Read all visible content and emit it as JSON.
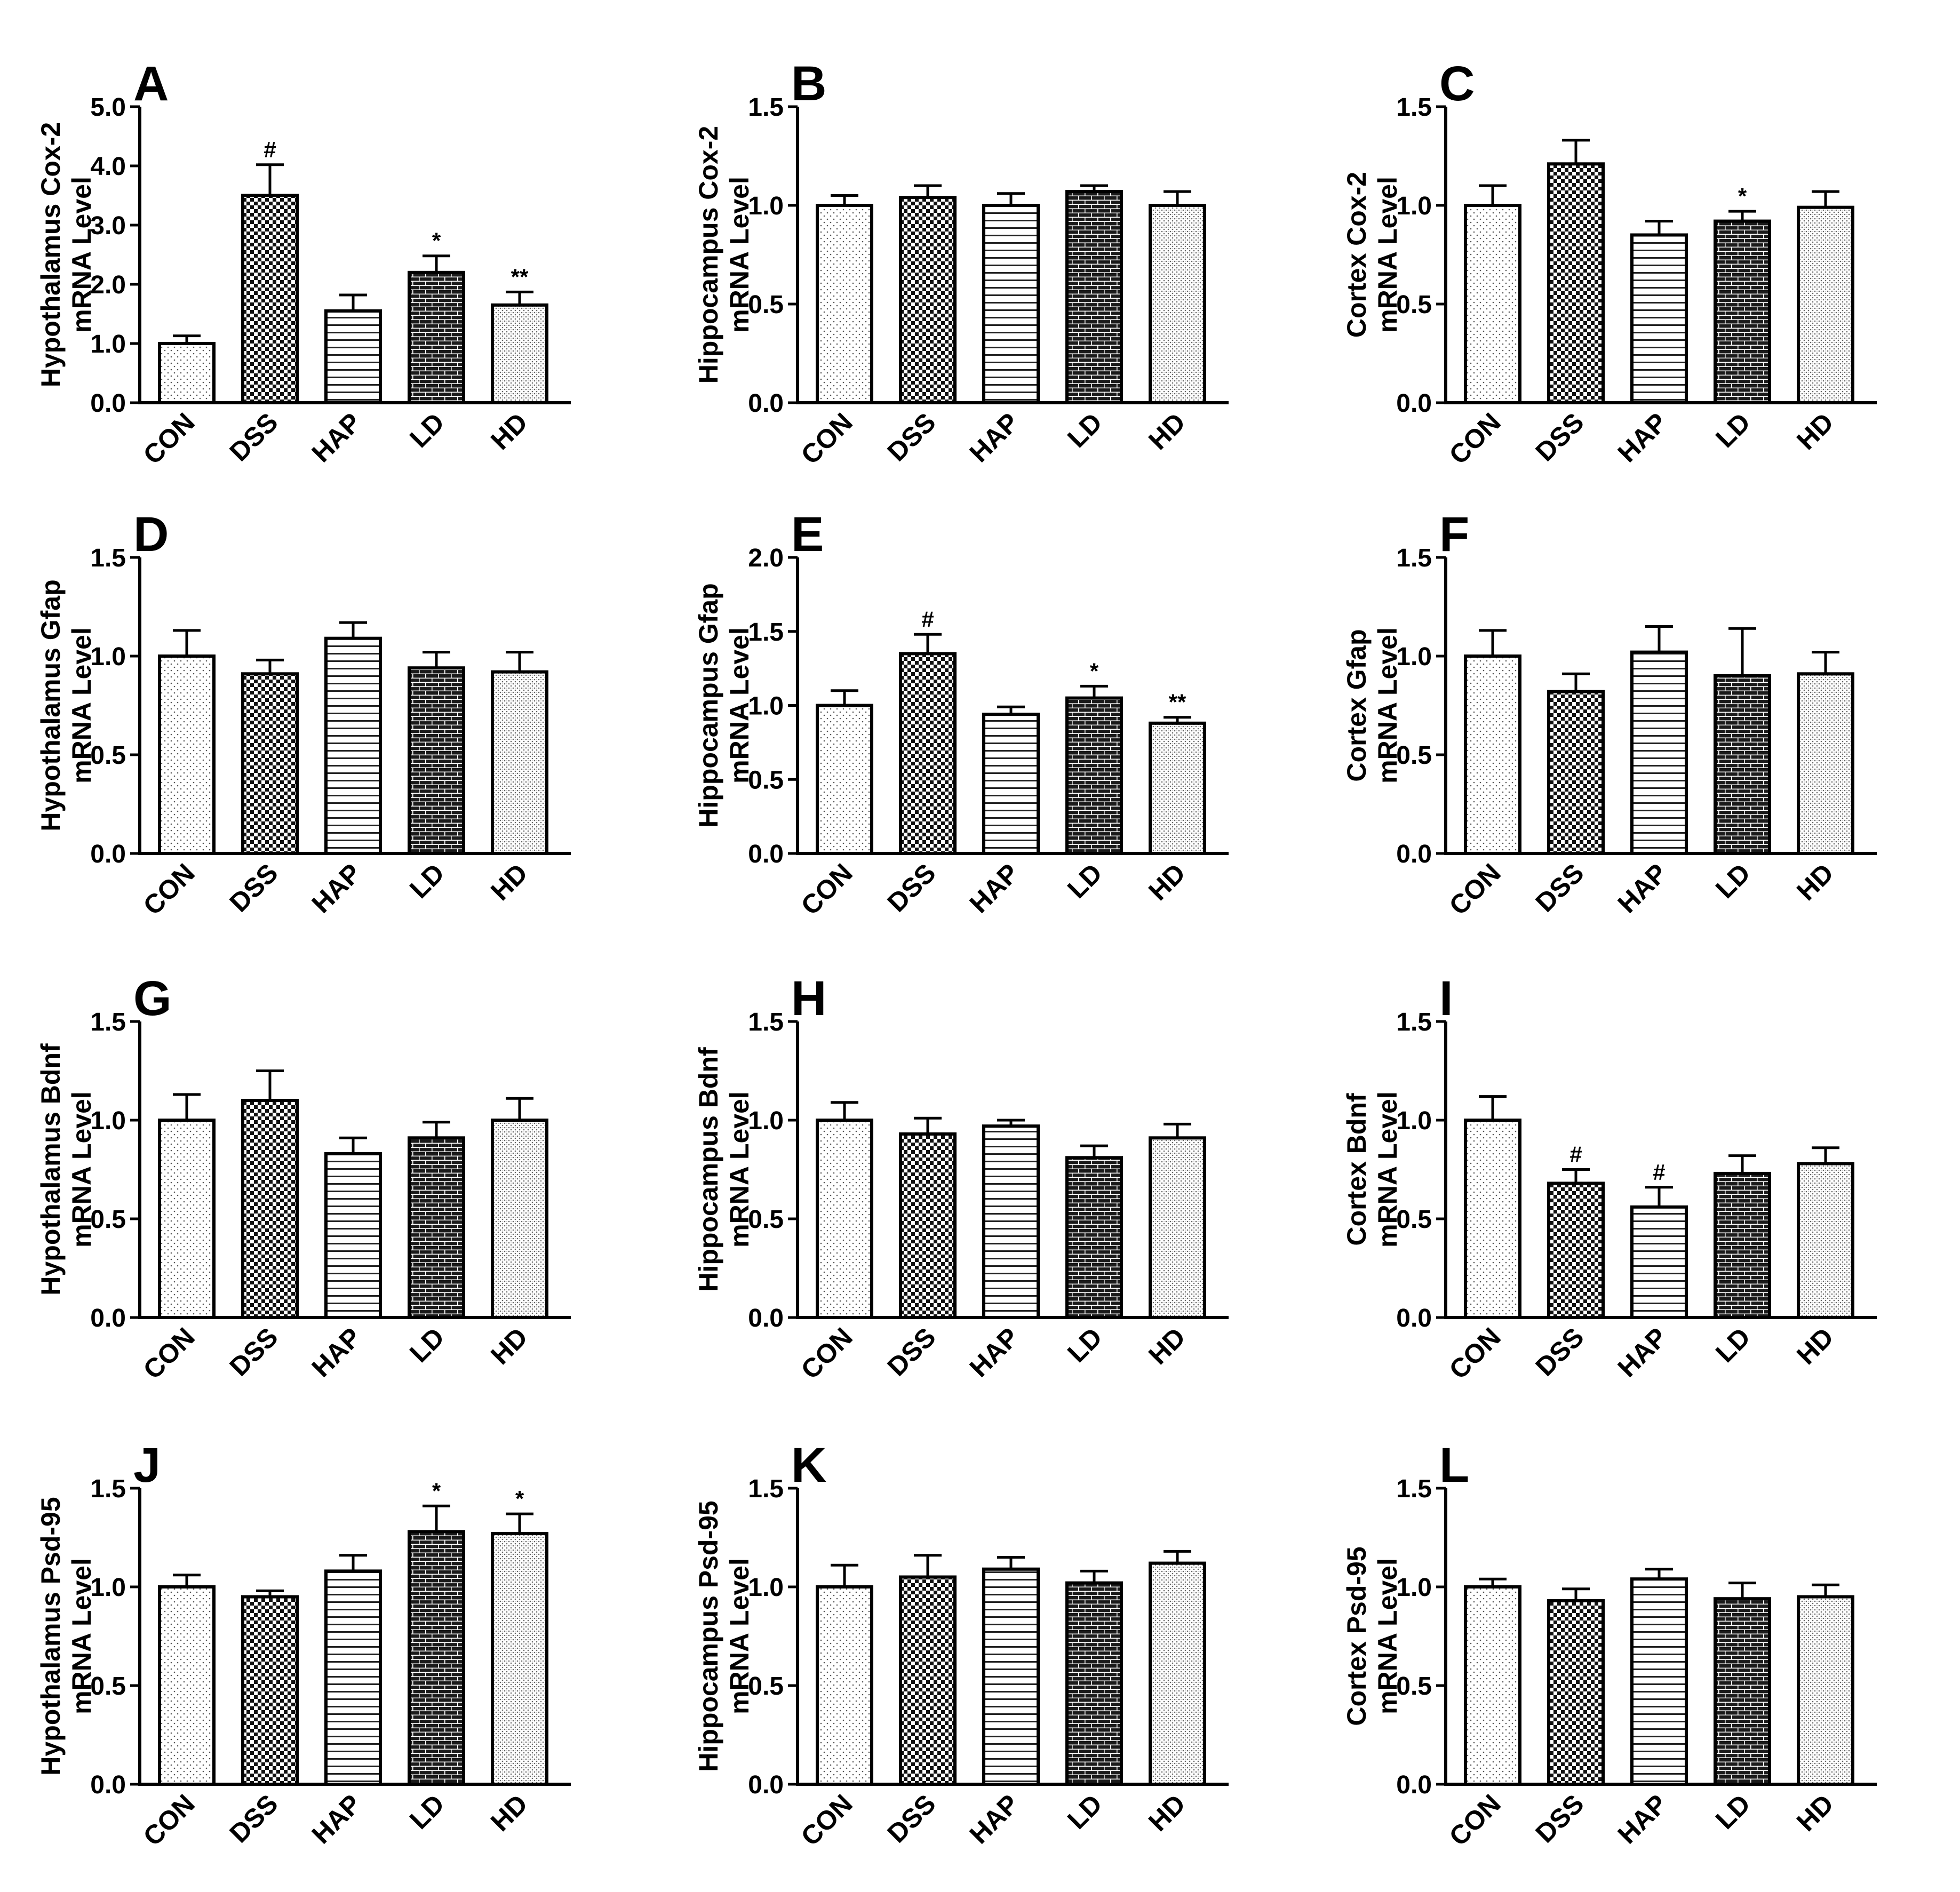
{
  "figure": {
    "categories": [
      "CON",
      "DSS",
      "HAP",
      "LD",
      "HD"
    ],
    "chart_data": [
      {
        "panel": "A",
        "type": "bar",
        "ylabel": [
          "Hypothalamus Cox-2",
          "mRNA Level"
        ],
        "ylim": [
          0,
          5
        ],
        "ticks": [
          "0.0",
          "1.0",
          "2.0",
          "3.0",
          "4.0",
          "5.0"
        ],
        "tick_values": [
          0,
          1,
          2,
          3,
          4,
          5
        ],
        "categories": [
          "CON",
          "DSS",
          "HAP",
          "LD",
          "HD"
        ],
        "values": [
          1.0,
          3.5,
          1.55,
          2.2,
          1.65
        ],
        "errors": [
          0.13,
          0.52,
          0.27,
          0.28,
          0.22
        ],
        "annotations": [
          "",
          "#",
          "",
          "*",
          "**"
        ]
      },
      {
        "panel": "B",
        "type": "bar",
        "ylabel": [
          "Hippocampus Cox-2",
          "mRNA Level"
        ],
        "ylim": [
          0,
          1.5
        ],
        "ticks": [
          "0.0",
          "0.5",
          "1.0",
          "1.5"
        ],
        "tick_values": [
          0,
          0.5,
          1.0,
          1.5
        ],
        "categories": [
          "CON",
          "DSS",
          "HAP",
          "LD",
          "HD"
        ],
        "values": [
          1.0,
          1.04,
          1.0,
          1.07,
          1.0
        ],
        "errors": [
          0.05,
          0.06,
          0.06,
          0.03,
          0.07
        ],
        "annotations": [
          "",
          "",
          "",
          "",
          ""
        ]
      },
      {
        "panel": "C",
        "type": "bar",
        "ylabel": [
          "Cortex Cox-2",
          "mRNA Level"
        ],
        "ylim": [
          0,
          1.5
        ],
        "ticks": [
          "0.0",
          "0.5",
          "1.0",
          "1.5"
        ],
        "tick_values": [
          0,
          0.5,
          1.0,
          1.5
        ],
        "categories": [
          "CON",
          "DSS",
          "HAP",
          "LD",
          "HD"
        ],
        "values": [
          1.0,
          1.21,
          0.85,
          0.92,
          0.99
        ],
        "errors": [
          0.1,
          0.12,
          0.07,
          0.05,
          0.08
        ],
        "annotations": [
          "",
          "",
          "",
          "*",
          ""
        ]
      },
      {
        "panel": "D",
        "type": "bar",
        "ylabel": [
          "Hypothalamus Gfap",
          "mRNA Level"
        ],
        "ylim": [
          0,
          1.5
        ],
        "ticks": [
          "0.0",
          "0.5",
          "1.0",
          "1.5"
        ],
        "tick_values": [
          0,
          0.5,
          1.0,
          1.5
        ],
        "categories": [
          "CON",
          "DSS",
          "HAP",
          "LD",
          "HD"
        ],
        "values": [
          1.0,
          0.91,
          1.09,
          0.94,
          0.92
        ],
        "errors": [
          0.13,
          0.07,
          0.08,
          0.08,
          0.1
        ],
        "annotations": [
          "",
          "",
          "",
          "",
          ""
        ]
      },
      {
        "panel": "E",
        "type": "bar",
        "ylabel": [
          "Hippocampus Gfap",
          "mRNA Level"
        ],
        "ylim": [
          0,
          2.0
        ],
        "ticks": [
          "0.0",
          "0.5",
          "1.0",
          "1.5",
          "2.0"
        ],
        "tick_values": [
          0,
          0.5,
          1.0,
          1.5,
          2.0
        ],
        "categories": [
          "CON",
          "DSS",
          "HAP",
          "LD",
          "HD"
        ],
        "values": [
          1.0,
          1.35,
          0.94,
          1.05,
          0.88
        ],
        "errors": [
          0.1,
          0.13,
          0.05,
          0.08,
          0.04
        ],
        "annotations": [
          "",
          "#",
          "",
          "*",
          "**"
        ]
      },
      {
        "panel": "F",
        "type": "bar",
        "ylabel": [
          "Cortex Gfap",
          "mRNA Level"
        ],
        "ylim": [
          0,
          1.5
        ],
        "ticks": [
          "0.0",
          "0.5",
          "1.0",
          "1.5"
        ],
        "tick_values": [
          0,
          0.5,
          1.0,
          1.5
        ],
        "categories": [
          "CON",
          "DSS",
          "HAP",
          "LD",
          "HD"
        ],
        "values": [
          1.0,
          0.82,
          1.02,
          0.9,
          0.91
        ],
        "errors": [
          0.13,
          0.09,
          0.13,
          0.24,
          0.11
        ],
        "annotations": [
          "",
          "",
          "",
          "",
          ""
        ]
      },
      {
        "panel": "G",
        "type": "bar",
        "ylabel": [
          "Hypothalamus Bdnf",
          "mRNA Level"
        ],
        "ylim": [
          0,
          1.5
        ],
        "ticks": [
          "0.0",
          "0.5",
          "1.0",
          "1.5"
        ],
        "tick_values": [
          0,
          0.5,
          1.0,
          1.5
        ],
        "categories": [
          "CON",
          "DSS",
          "HAP",
          "LD",
          "HD"
        ],
        "values": [
          1.0,
          1.1,
          0.83,
          0.91,
          1.0
        ],
        "errors": [
          0.13,
          0.15,
          0.08,
          0.08,
          0.11
        ],
        "annotations": [
          "",
          "",
          "",
          "",
          ""
        ]
      },
      {
        "panel": "H",
        "type": "bar",
        "ylabel": [
          "Hippocampus Bdnf",
          "mRNA Level"
        ],
        "ylim": [
          0,
          1.5
        ],
        "ticks": [
          "0.0",
          "0.5",
          "1.0",
          "1.5"
        ],
        "tick_values": [
          0,
          0.5,
          1.0,
          1.5
        ],
        "categories": [
          "CON",
          "DSS",
          "HAP",
          "LD",
          "HD"
        ],
        "values": [
          1.0,
          0.93,
          0.97,
          0.81,
          0.91
        ],
        "errors": [
          0.09,
          0.08,
          0.03,
          0.06,
          0.07
        ],
        "annotations": [
          "",
          "",
          "",
          "",
          ""
        ]
      },
      {
        "panel": "I",
        "type": "bar",
        "ylabel": [
          "Cortex Bdnf",
          "mRNA Level"
        ],
        "ylim": [
          0,
          1.5
        ],
        "ticks": [
          "0.0",
          "0.5",
          "1.0",
          "1.5"
        ],
        "tick_values": [
          0,
          0.5,
          1.0,
          1.5
        ],
        "categories": [
          "CON",
          "DSS",
          "HAP",
          "LD",
          "HD"
        ],
        "values": [
          1.0,
          0.68,
          0.56,
          0.73,
          0.78
        ],
        "errors": [
          0.12,
          0.07,
          0.1,
          0.09,
          0.08
        ],
        "annotations": [
          "",
          "#",
          "#",
          "",
          ""
        ]
      },
      {
        "panel": "J",
        "type": "bar",
        "ylabel": [
          "Hypothalamus Psd-95",
          "mRNA Level"
        ],
        "ylim": [
          0,
          1.5
        ],
        "ticks": [
          "0.0",
          "0.5",
          "1.0",
          "1.5"
        ],
        "tick_values": [
          0,
          0.5,
          1.0,
          1.5
        ],
        "categories": [
          "CON",
          "DSS",
          "HAP",
          "LD",
          "HD"
        ],
        "values": [
          1.0,
          0.95,
          1.08,
          1.28,
          1.27
        ],
        "errors": [
          0.06,
          0.03,
          0.08,
          0.13,
          0.1
        ],
        "annotations": [
          "",
          "",
          "",
          "*",
          "*"
        ]
      },
      {
        "panel": "K",
        "type": "bar",
        "ylabel": [
          "Hippocampus Psd-95",
          "mRNA Level"
        ],
        "ylim": [
          0,
          1.5
        ],
        "ticks": [
          "0.0",
          "0.5",
          "1.0",
          "1.5"
        ],
        "tick_values": [
          0,
          0.5,
          1.0,
          1.5
        ],
        "categories": [
          "CON",
          "DSS",
          "HAP",
          "LD",
          "HD"
        ],
        "values": [
          1.0,
          1.05,
          1.09,
          1.02,
          1.12
        ],
        "errors": [
          0.11,
          0.11,
          0.06,
          0.06,
          0.06
        ],
        "annotations": [
          "",
          "",
          "",
          "",
          ""
        ]
      },
      {
        "panel": "L",
        "type": "bar",
        "ylabel": [
          "Cortex Psd-95",
          "mRNA Level"
        ],
        "ylim": [
          0,
          1.5
        ],
        "ticks": [
          "0.0",
          "0.5",
          "1.0",
          "1.5"
        ],
        "tick_values": [
          0,
          0.5,
          1.0,
          1.5
        ],
        "categories": [
          "CON",
          "DSS",
          "HAP",
          "LD",
          "HD"
        ],
        "values": [
          1.0,
          0.93,
          1.04,
          0.94,
          0.95
        ],
        "errors": [
          0.04,
          0.06,
          0.05,
          0.08,
          0.06
        ],
        "annotations": [
          "",
          "",
          "",
          "",
          ""
        ]
      }
    ]
  }
}
